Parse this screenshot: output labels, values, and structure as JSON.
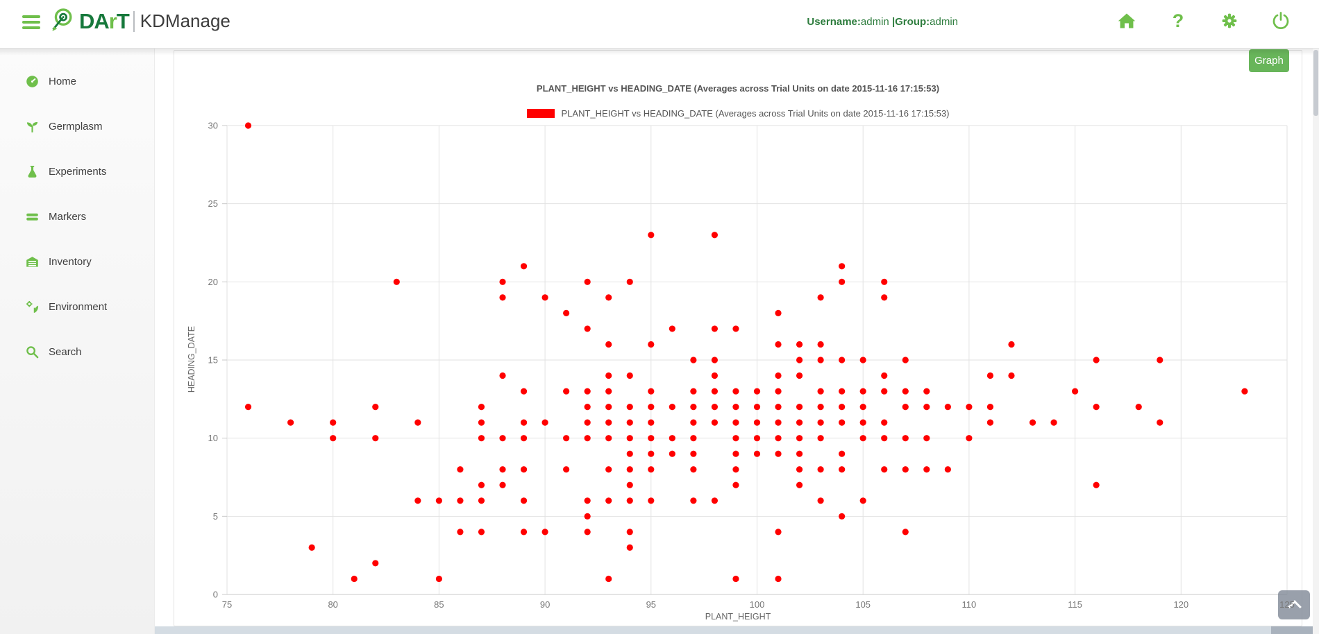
{
  "header": {
    "brand": "DArT",
    "brand_light_letter": "r",
    "brand_dark_prefix": "DA",
    "brand_dark_suffix": "T",
    "product": "KDManage",
    "username_label": "Username:",
    "username_value": "admin ",
    "divider": "|",
    "group_label": "Group:",
    "group_value": "admin",
    "help_glyph": "?"
  },
  "sidebar": {
    "items": [
      {
        "label": "Home",
        "icon": "dashboard-icon"
      },
      {
        "label": "Germplasm",
        "icon": "seedling-icon"
      },
      {
        "label": "Experiments",
        "icon": "flask-icon"
      },
      {
        "label": "Markers",
        "icon": "bars-icon"
      },
      {
        "label": "Inventory",
        "icon": "storage-icon"
      },
      {
        "label": "Environment",
        "icon": "environment-icon"
      },
      {
        "label": "Search",
        "icon": "search-icon"
      }
    ]
  },
  "toolbar": {
    "graph_label": "Graph"
  },
  "colors": {
    "accent_green": "#6fbf4b",
    "brand_dark_green": "#17793c",
    "username_green": "#2e7d3e",
    "button_green": "#68b55a",
    "point_red": "#ff0000",
    "gridline": "#e2e2e2",
    "axis_line": "#c9c9c9",
    "tick_text": "#777777"
  },
  "chart_data": {
    "type": "scatter",
    "title": "PLANT_HEIGHT vs HEADING_DATE (Averages across Trial Units on date 2015-11-16 17:15:53)",
    "legend": [
      {
        "label": "PLANT_HEIGHT vs HEADING_DATE (Averages across Trial Units on date 2015-11-16 17:15:53)",
        "color": "#ff0000"
      }
    ],
    "legend_position": "top",
    "xlabel": "PLANT_HEIGHT",
    "ylabel": "HEADING_DATE",
    "xlim": [
      75,
      125
    ],
    "ylim": [
      0,
      30
    ],
    "x_ticks": [
      75,
      80,
      85,
      90,
      95,
      100,
      105,
      110,
      115,
      120,
      125
    ],
    "y_ticks": [
      0,
      5,
      10,
      15,
      20,
      25,
      30
    ],
    "grid": true,
    "point_color": "#ff0000",
    "points": [
      [
        76,
        30
      ],
      [
        95,
        23
      ],
      [
        98,
        23
      ],
      [
        89,
        21
      ],
      [
        104,
        21
      ],
      [
        83,
        20
      ],
      [
        88,
        20
      ],
      [
        92,
        20
      ],
      [
        94,
        20
      ],
      [
        104,
        20
      ],
      [
        106,
        20
      ],
      [
        88,
        19
      ],
      [
        90,
        19
      ],
      [
        93,
        19
      ],
      [
        103,
        19
      ],
      [
        106,
        19
      ],
      [
        91,
        18
      ],
      [
        101,
        18
      ],
      [
        92,
        17
      ],
      [
        96,
        17
      ],
      [
        98,
        17
      ],
      [
        99,
        17
      ],
      [
        93,
        16
      ],
      [
        95,
        16
      ],
      [
        101,
        16
      ],
      [
        102,
        16
      ],
      [
        103,
        16
      ],
      [
        112,
        16
      ],
      [
        97,
        15
      ],
      [
        98,
        15
      ],
      [
        102,
        15
      ],
      [
        103,
        15
      ],
      [
        104,
        15
      ],
      [
        105,
        15
      ],
      [
        107,
        15
      ],
      [
        116,
        15
      ],
      [
        119,
        15
      ],
      [
        88,
        14
      ],
      [
        93,
        14
      ],
      [
        94,
        14
      ],
      [
        98,
        14
      ],
      [
        101,
        14
      ],
      [
        102,
        14
      ],
      [
        106,
        14
      ],
      [
        111,
        14
      ],
      [
        112,
        14
      ],
      [
        89,
        13
      ],
      [
        91,
        13
      ],
      [
        92,
        13
      ],
      [
        93,
        13
      ],
      [
        95,
        13
      ],
      [
        97,
        13
      ],
      [
        98,
        13
      ],
      [
        99,
        13
      ],
      [
        100,
        13
      ],
      [
        101,
        13
      ],
      [
        103,
        13
      ],
      [
        104,
        13
      ],
      [
        105,
        13
      ],
      [
        106,
        13
      ],
      [
        107,
        13
      ],
      [
        108,
        13
      ],
      [
        115,
        13
      ],
      [
        123,
        13
      ],
      [
        76,
        12
      ],
      [
        82,
        12
      ],
      [
        87,
        12
      ],
      [
        92,
        12
      ],
      [
        93,
        12
      ],
      [
        94,
        12
      ],
      [
        95,
        12
      ],
      [
        96,
        12
      ],
      [
        97,
        12
      ],
      [
        98,
        12
      ],
      [
        99,
        12
      ],
      [
        100,
        12
      ],
      [
        101,
        12
      ],
      [
        102,
        12
      ],
      [
        103,
        12
      ],
      [
        104,
        12
      ],
      [
        105,
        12
      ],
      [
        107,
        12
      ],
      [
        108,
        12
      ],
      [
        109,
        12
      ],
      [
        110,
        12
      ],
      [
        111,
        12
      ],
      [
        116,
        12
      ],
      [
        118,
        12
      ],
      [
        78,
        11
      ],
      [
        80,
        11
      ],
      [
        84,
        11
      ],
      [
        87,
        11
      ],
      [
        89,
        11
      ],
      [
        90,
        11
      ],
      [
        92,
        11
      ],
      [
        93,
        11
      ],
      [
        94,
        11
      ],
      [
        95,
        11
      ],
      [
        97,
        11
      ],
      [
        98,
        11
      ],
      [
        99,
        11
      ],
      [
        100,
        11
      ],
      [
        101,
        11
      ],
      [
        102,
        11
      ],
      [
        103,
        11
      ],
      [
        104,
        11
      ],
      [
        105,
        11
      ],
      [
        106,
        11
      ],
      [
        111,
        11
      ],
      [
        113,
        11
      ],
      [
        114,
        11
      ],
      [
        119,
        11
      ],
      [
        80,
        10
      ],
      [
        82,
        10
      ],
      [
        87,
        10
      ],
      [
        88,
        10
      ],
      [
        89,
        10
      ],
      [
        91,
        10
      ],
      [
        92,
        10
      ],
      [
        93,
        10
      ],
      [
        94,
        10
      ],
      [
        95,
        10
      ],
      [
        96,
        10
      ],
      [
        97,
        10
      ],
      [
        99,
        10
      ],
      [
        100,
        10
      ],
      [
        101,
        10
      ],
      [
        102,
        10
      ],
      [
        103,
        10
      ],
      [
        105,
        10
      ],
      [
        106,
        10
      ],
      [
        107,
        10
      ],
      [
        108,
        10
      ],
      [
        110,
        10
      ],
      [
        94,
        9
      ],
      [
        95,
        9
      ],
      [
        96,
        9
      ],
      [
        97,
        9
      ],
      [
        99,
        9
      ],
      [
        100,
        9
      ],
      [
        101,
        9
      ],
      [
        102,
        9
      ],
      [
        104,
        9
      ],
      [
        86,
        8
      ],
      [
        88,
        8
      ],
      [
        89,
        8
      ],
      [
        91,
        8
      ],
      [
        93,
        8
      ],
      [
        94,
        8
      ],
      [
        95,
        8
      ],
      [
        97,
        8
      ],
      [
        99,
        8
      ],
      [
        102,
        8
      ],
      [
        103,
        8
      ],
      [
        104,
        8
      ],
      [
        106,
        8
      ],
      [
        107,
        8
      ],
      [
        108,
        8
      ],
      [
        109,
        8
      ],
      [
        87,
        7
      ],
      [
        88,
        7
      ],
      [
        94,
        7
      ],
      [
        99,
        7
      ],
      [
        102,
        7
      ],
      [
        116,
        7
      ],
      [
        84,
        6
      ],
      [
        85,
        6
      ],
      [
        86,
        6
      ],
      [
        87,
        6
      ],
      [
        89,
        6
      ],
      [
        92,
        6
      ],
      [
        93,
        6
      ],
      [
        94,
        6
      ],
      [
        95,
        6
      ],
      [
        97,
        6
      ],
      [
        98,
        6
      ],
      [
        103,
        6
      ],
      [
        105,
        6
      ],
      [
        92,
        5
      ],
      [
        104,
        5
      ],
      [
        86,
        4
      ],
      [
        87,
        4
      ],
      [
        89,
        4
      ],
      [
        90,
        4
      ],
      [
        92,
        4
      ],
      [
        94,
        4
      ],
      [
        101,
        4
      ],
      [
        107,
        4
      ],
      [
        79,
        3
      ],
      [
        94,
        3
      ],
      [
        82,
        2
      ],
      [
        81,
        1
      ],
      [
        85,
        1
      ],
      [
        93,
        1
      ],
      [
        99,
        1
      ],
      [
        101,
        1
      ]
    ]
  }
}
